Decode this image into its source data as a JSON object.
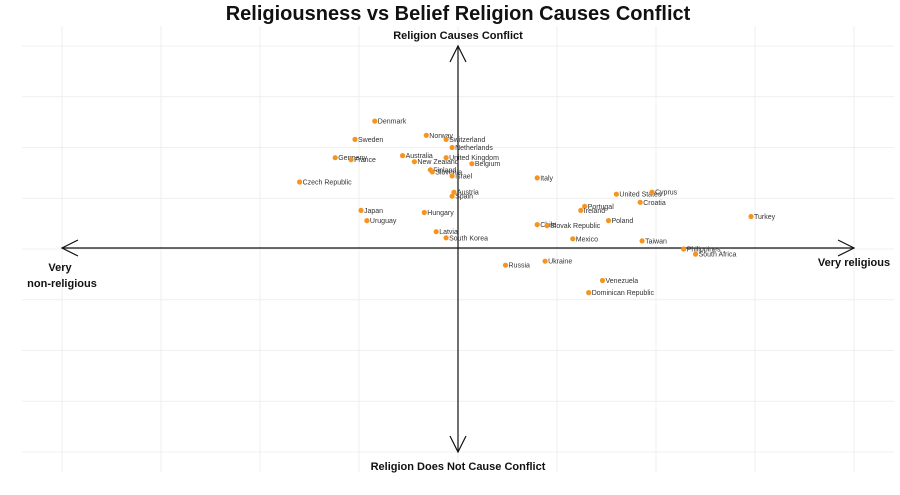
{
  "chart_data": {
    "type": "scatter",
    "title": "Religiousness vs Belief Religion Causes Conflict",
    "xlim": [
      -1,
      1
    ],
    "ylim": [
      -1,
      1
    ],
    "grid": true,
    "point_color": "#f7941d",
    "axis_labels": {
      "top": "Religion Causes Conflict",
      "bottom": "Religion Does Not Cause Conflict",
      "left_line1": "Very",
      "left_line2": "non-religious",
      "right": "Very religious"
    },
    "points": [
      {
        "label": "Denmark",
        "x": -0.21,
        "y": 0.63
      },
      {
        "label": "Sweden",
        "x": -0.26,
        "y": 0.54
      },
      {
        "label": "Norway",
        "x": -0.08,
        "y": 0.56
      },
      {
        "label": "Switzerland",
        "x": -0.03,
        "y": 0.54
      },
      {
        "label": "Netherlands",
        "x": -0.015,
        "y": 0.5
      },
      {
        "label": "Germany",
        "x": -0.31,
        "y": 0.45
      },
      {
        "label": "France",
        "x": -0.27,
        "y": 0.44
      },
      {
        "label": "Australia",
        "x": -0.14,
        "y": 0.46
      },
      {
        "label": "New Zealand",
        "x": -0.11,
        "y": 0.43
      },
      {
        "label": "United Kingdom",
        "x": -0.03,
        "y": 0.45
      },
      {
        "label": "Belgium",
        "x": 0.035,
        "y": 0.42
      },
      {
        "label": "Finland",
        "x": -0.07,
        "y": 0.39
      },
      {
        "label": "Slovenia",
        "x": -0.065,
        "y": 0.38
      },
      {
        "label": "Israel",
        "x": -0.015,
        "y": 0.36
      },
      {
        "label": "Czech Republic",
        "x": -0.4,
        "y": 0.33
      },
      {
        "label": "Italy",
        "x": 0.2,
        "y": 0.35
      },
      {
        "label": "Austria",
        "x": -0.01,
        "y": 0.28
      },
      {
        "label": "Spain",
        "x": -0.015,
        "y": 0.26
      },
      {
        "label": "United States",
        "x": 0.4,
        "y": 0.27
      },
      {
        "label": "Cyprus",
        "x": 0.49,
        "y": 0.28
      },
      {
        "label": "Croatia",
        "x": 0.46,
        "y": 0.23
      },
      {
        "label": "Portugal",
        "x": 0.32,
        "y": 0.21
      },
      {
        "label": "Ireland",
        "x": 0.31,
        "y": 0.19
      },
      {
        "label": "Turkey",
        "x": 0.74,
        "y": 0.16
      },
      {
        "label": "Japan",
        "x": -0.245,
        "y": 0.19
      },
      {
        "label": "Hungary",
        "x": -0.085,
        "y": 0.18
      },
      {
        "label": "Uruguay",
        "x": -0.23,
        "y": 0.14
      },
      {
        "label": "Poland",
        "x": 0.38,
        "y": 0.14
      },
      {
        "label": "Chile",
        "x": 0.2,
        "y": 0.12
      },
      {
        "label": "Slovak Republic",
        "x": 0.225,
        "y": 0.115
      },
      {
        "label": "Latvia",
        "x": -0.055,
        "y": 0.085
      },
      {
        "label": "South Korea",
        "x": -0.03,
        "y": 0.055
      },
      {
        "label": "Mexico",
        "x": 0.29,
        "y": 0.05
      },
      {
        "label": "Taiwan",
        "x": 0.465,
        "y": 0.04
      },
      {
        "label": "Philippines",
        "x": 0.57,
        "y": 0.0
      },
      {
        "label": "South Africa",
        "x": 0.6,
        "y": -0.025
      },
      {
        "label": "Russia",
        "x": 0.12,
        "y": -0.08
      },
      {
        "label": "Ukraine",
        "x": 0.22,
        "y": -0.06
      },
      {
        "label": "Venezuela",
        "x": 0.365,
        "y": -0.155
      },
      {
        "label": "Dominican Republic",
        "x": 0.33,
        "y": -0.215
      }
    ]
  }
}
